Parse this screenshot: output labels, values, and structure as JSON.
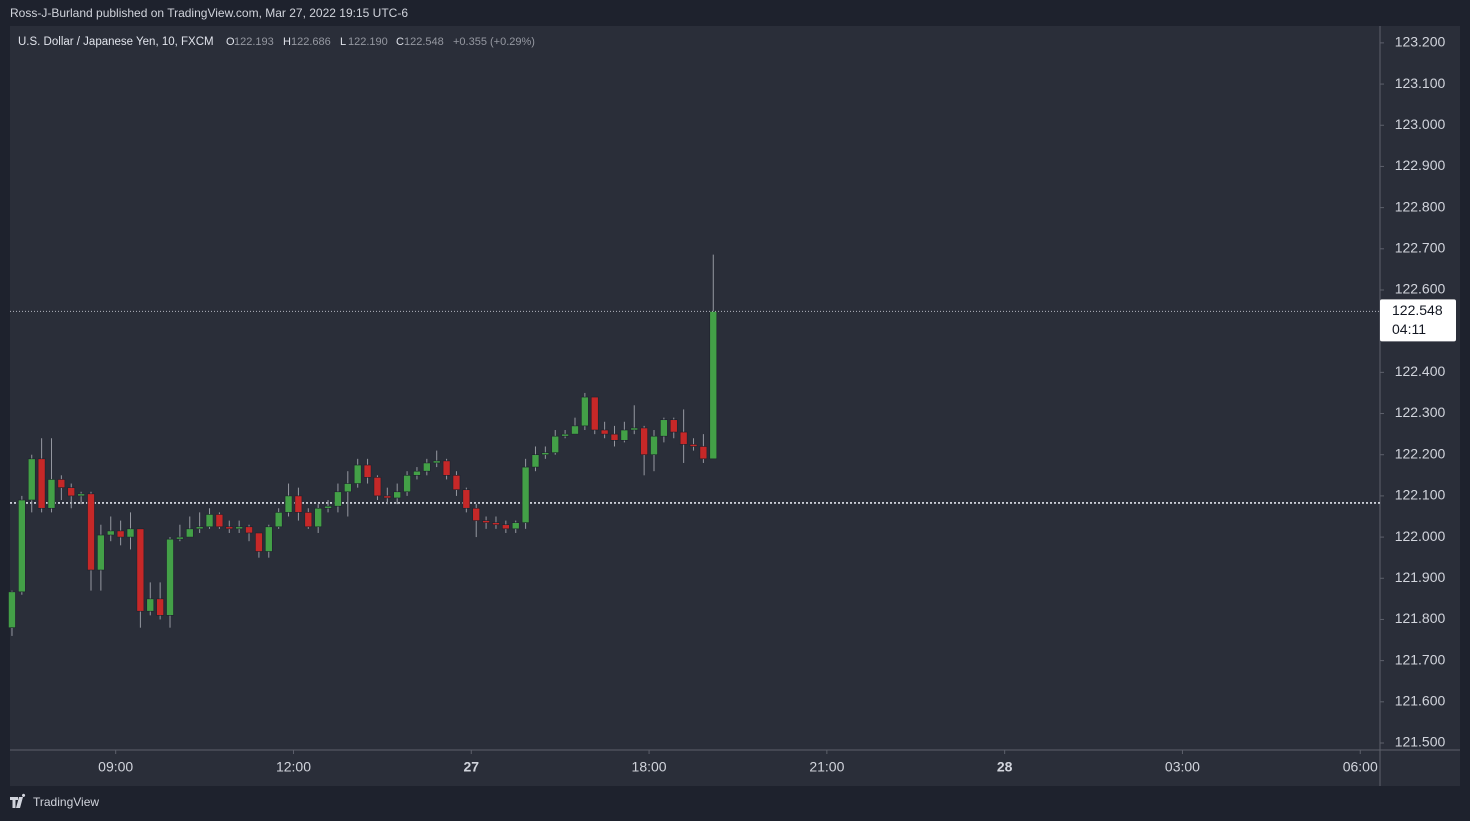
{
  "header": {
    "text": "Ross-J-Burland published on TradingView.com, Mar 27, 2022 19:15 UTC-6"
  },
  "legend": {
    "symbol": "U.S. Dollar / Japanese Yen, 10, FXCM",
    "open_label": "O",
    "open": "122.193",
    "high_label": "H",
    "high": "122.686",
    "low_label": "L",
    "low": "122.190",
    "close_label": "C",
    "close": "122.548",
    "change": "+0.355 (+0.29%)"
  },
  "footer": {
    "brand": "TradingView"
  },
  "chart_data": {
    "type": "candlestick",
    "up_color": "#43a047",
    "down_color": "#c62828",
    "x": [
      0,
      1,
      2,
      3,
      4,
      5,
      6,
      7,
      8,
      9,
      10,
      11,
      12,
      13,
      14,
      15,
      16,
      17,
      18,
      19,
      20,
      21,
      22,
      23,
      24,
      25,
      26,
      27,
      28,
      29,
      30,
      31,
      32,
      33,
      34,
      35,
      36,
      37,
      38,
      39,
      40,
      41,
      42,
      43,
      44,
      45,
      46,
      47,
      48,
      49,
      50,
      51,
      52,
      53,
      54,
      55,
      56,
      57,
      58,
      59,
      60,
      61,
      62,
      63,
      64,
      65,
      66,
      67,
      68,
      69,
      70,
      71
    ],
    "open": [
      121.78,
      121.867,
      122.09,
      122.19,
      122.07,
      122.14,
      122.12,
      122.1,
      122.105,
      121.92,
      122.005,
      122.015,
      122.0,
      122.02,
      121.82,
      121.85,
      121.81,
      121.995,
      122.0,
      122.02,
      122.025,
      122.055,
      122.025,
      122.02,
      122.025,
      122.01,
      121.965,
      122.025,
      122.06,
      122.1,
      122.06,
      122.025,
      122.07,
      122.075,
      122.11,
      122.13,
      122.175,
      122.145,
      122.1,
      122.095,
      122.11,
      122.15,
      122.16,
      122.18,
      122.185,
      122.15,
      122.115,
      122.07,
      122.04,
      122.035,
      122.03,
      122.02,
      122.035,
      122.17,
      122.2,
      122.205,
      122.245,
      122.25,
      122.27,
      122.34,
      122.26,
      122.25,
      122.235,
      122.26,
      122.265,
      122.2,
      122.245,
      122.285,
      122.255,
      122.225,
      122.22,
      122.19
    ],
    "high": [
      121.87,
      122.1,
      122.2,
      122.24,
      122.24,
      122.15,
      122.13,
      122.11,
      122.11,
      122.03,
      122.05,
      122.04,
      122.06,
      122.02,
      121.89,
      121.89,
      122.0,
      122.03,
      122.05,
      122.06,
      122.07,
      122.06,
      122.04,
      122.04,
      122.03,
      122.01,
      122.03,
      122.07,
      122.13,
      122.12,
      122.07,
      122.08,
      122.09,
      122.13,
      122.16,
      122.19,
      122.19,
      122.15,
      122.12,
      122.13,
      122.16,
      122.17,
      122.19,
      122.21,
      122.19,
      122.16,
      122.12,
      122.08,
      122.05,
      122.05,
      122.04,
      122.04,
      122.19,
      122.22,
      122.22,
      122.26,
      122.26,
      122.29,
      122.35,
      122.34,
      122.28,
      122.27,
      122.28,
      122.32,
      122.27,
      122.26,
      122.29,
      122.29,
      122.31,
      122.24,
      122.25,
      122.686
    ],
    "low": [
      121.76,
      121.86,
      122.06,
      122.06,
      122.06,
      122.09,
      122.07,
      122.08,
      121.87,
      121.87,
      121.99,
      121.98,
      121.97,
      121.78,
      121.81,
      121.8,
      121.78,
      121.99,
      122.0,
      122.01,
      122.02,
      122.02,
      122.01,
      122.01,
      121.99,
      121.95,
      121.95,
      122.02,
      122.05,
      122.04,
      122.02,
      122.01,
      122.06,
      122.06,
      122.05,
      122.12,
      122.13,
      122.09,
      122.08,
      122.08,
      122.1,
      122.14,
      122.15,
      122.17,
      122.14,
      122.1,
      122.06,
      122.0,
      122.02,
      122.02,
      122.01,
      122.01,
      122.02,
      122.16,
      122.19,
      122.2,
      122.24,
      122.25,
      122.26,
      122.25,
      122.24,
      122.22,
      122.23,
      122.25,
      122.15,
      122.16,
      122.23,
      122.24,
      122.18,
      122.21,
      122.18,
      122.19
    ],
    "close": [
      121.867,
      122.09,
      122.19,
      122.07,
      122.14,
      122.12,
      122.1,
      122.105,
      121.92,
      122.005,
      122.015,
      122.0,
      122.02,
      121.82,
      121.85,
      121.81,
      121.995,
      122.0,
      122.02,
      122.025,
      122.055,
      122.025,
      122.02,
      122.025,
      122.01,
      121.965,
      122.025,
      122.06,
      122.1,
      122.06,
      122.025,
      122.07,
      122.075,
      122.11,
      122.13,
      122.175,
      122.145,
      122.1,
      122.095,
      122.11,
      122.15,
      122.16,
      122.18,
      122.185,
      122.15,
      122.115,
      122.07,
      122.04,
      122.035,
      122.03,
      122.02,
      122.035,
      122.17,
      122.2,
      122.205,
      122.245,
      122.25,
      122.27,
      122.34,
      122.26,
      122.25,
      122.235,
      122.26,
      122.265,
      122.2,
      122.245,
      122.285,
      122.255,
      122.225,
      122.22,
      122.19,
      122.548
    ],
    "xlim": [
      -0.2,
      138.5
    ],
    "xticks": [
      {
        "value": 10.5,
        "label": "09:00"
      },
      {
        "value": 28.5,
        "label": "12:00"
      },
      {
        "value": 46.5,
        "label": "27"
      },
      {
        "value": 64.5,
        "label": "18:00"
      },
      {
        "value": 82.5,
        "label": "21:00"
      },
      {
        "value": 100.5,
        "label": "28"
      },
      {
        "value": 118.5,
        "label": "03:00"
      },
      {
        "value": 136.5,
        "label": "06:00"
      }
    ],
    "ylim": [
      121.483,
      123.241
    ],
    "yticks": [
      {
        "value": 121.5,
        "label": "121.500"
      },
      {
        "value": 121.6,
        "label": "121.600"
      },
      {
        "value": 121.7,
        "label": "121.700"
      },
      {
        "value": 121.8,
        "label": "121.800"
      },
      {
        "value": 121.9,
        "label": "121.900"
      },
      {
        "value": 122.0,
        "label": "122.000"
      },
      {
        "value": 122.1,
        "label": "122.100"
      },
      {
        "value": 122.2,
        "label": "122.200"
      },
      {
        "value": 122.3,
        "label": "122.300"
      },
      {
        "value": 122.4,
        "label": "122.400"
      },
      {
        "value": 122.5,
        "label": "122.500"
      },
      {
        "value": 122.6,
        "label": "122.600"
      },
      {
        "value": 122.7,
        "label": "122.700"
      },
      {
        "value": 122.8,
        "label": "122.800"
      },
      {
        "value": 122.9,
        "label": "122.900"
      },
      {
        "value": 123.0,
        "label": "123.000"
      },
      {
        "value": 123.1,
        "label": "123.100"
      },
      {
        "value": 123.2,
        "label": "123.200"
      }
    ],
    "last_price": {
      "value": 122.548,
      "label": "122.548",
      "countdown": "04:11"
    },
    "previous_close": 122.083
  }
}
